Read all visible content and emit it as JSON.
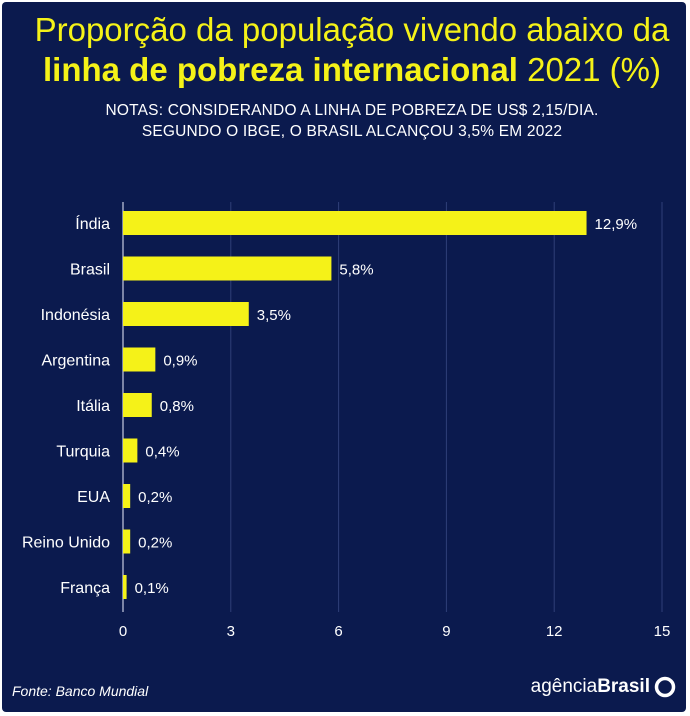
{
  "title": {
    "line1": "Proporção da população vivendo abaixo da",
    "line2_bold": "linha de pobreza internacional",
    "line2_rest": " 2021 (%)"
  },
  "notes": {
    "line1": "NOTAS: CONSIDERANDO A LINHA DE POBREZA DE US$ 2,15/DIA.",
    "line2": "SEGUNDO O IBGE, O BRASIL ALCANÇOU 3,5% EM 2022"
  },
  "colors": {
    "background": "#0b1a4e",
    "bar": "#f5f218",
    "text": "#ffffff",
    "grid": "#2f3f78"
  },
  "chart_data": {
    "type": "bar",
    "orientation": "horizontal",
    "categories": [
      "Índia",
      "Brasil",
      "Indonésia",
      "Argentina",
      "Itália",
      "Turquia",
      "EUA",
      "Reino Unido",
      "França"
    ],
    "values": [
      12.9,
      5.8,
      3.5,
      0.9,
      0.8,
      0.4,
      0.2,
      0.2,
      0.1
    ],
    "value_labels": [
      "12,9%",
      "5,8%",
      "3,5%",
      "0,9%",
      "0,8%",
      "0,4%",
      "0,2%",
      "0,2%",
      "0,1%"
    ],
    "x_ticks": [
      0,
      3,
      6,
      9,
      12,
      15
    ],
    "x_tick_labels": [
      "0",
      "3",
      "6",
      "9",
      "12",
      "15"
    ],
    "xlim": [
      0,
      15
    ],
    "grid": true
  },
  "footer": {
    "source": "Fonte: Banco Mundial",
    "brand_light": "agência",
    "brand_bold": "Brasil"
  }
}
